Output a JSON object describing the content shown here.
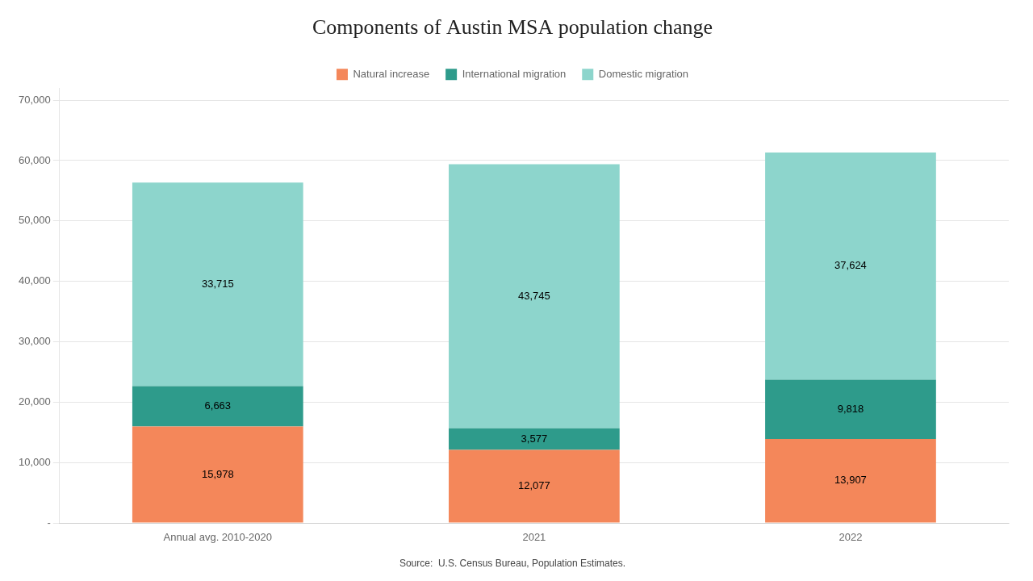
{
  "chart_data": {
    "type": "bar",
    "stacked": true,
    "title": "Components of Austin MSA population change",
    "categories": [
      "Annual avg. 2010-2020",
      "2021",
      "2022"
    ],
    "series": [
      {
        "name": "Natural increase",
        "color": "#F4875A",
        "values": [
          15978,
          12077,
          13907
        ],
        "value_labels": [
          "15,978",
          "12,077",
          "13,907"
        ]
      },
      {
        "name": "International migration",
        "color": "#2E9B8B",
        "values": [
          6663,
          3577,
          9818
        ],
        "value_labels": [
          "6,663",
          "3,577",
          "9,818"
        ]
      },
      {
        "name": "Domestic migration",
        "color": "#8DD5CC",
        "values": [
          33715,
          43745,
          37624
        ],
        "value_labels": [
          "33,715",
          "43,745",
          "37,624"
        ]
      }
    ],
    "ylim": [
      0,
      72000
    ],
    "yticks": [
      {
        "value": 0,
        "label": "-"
      },
      {
        "value": 10000,
        "label": "10,000"
      },
      {
        "value": 20000,
        "label": "20,000"
      },
      {
        "value": 30000,
        "label": "30,000"
      },
      {
        "value": 40000,
        "label": "40,000"
      },
      {
        "value": 50000,
        "label": "50,000"
      },
      {
        "value": 60000,
        "label": "60,000"
      },
      {
        "value": 70000,
        "label": "70,000"
      }
    ],
    "grid": true,
    "legend": "top",
    "data_labels": true,
    "annotations": [
      "Source:  U.S. Census Bureau, Population Estimates."
    ]
  }
}
